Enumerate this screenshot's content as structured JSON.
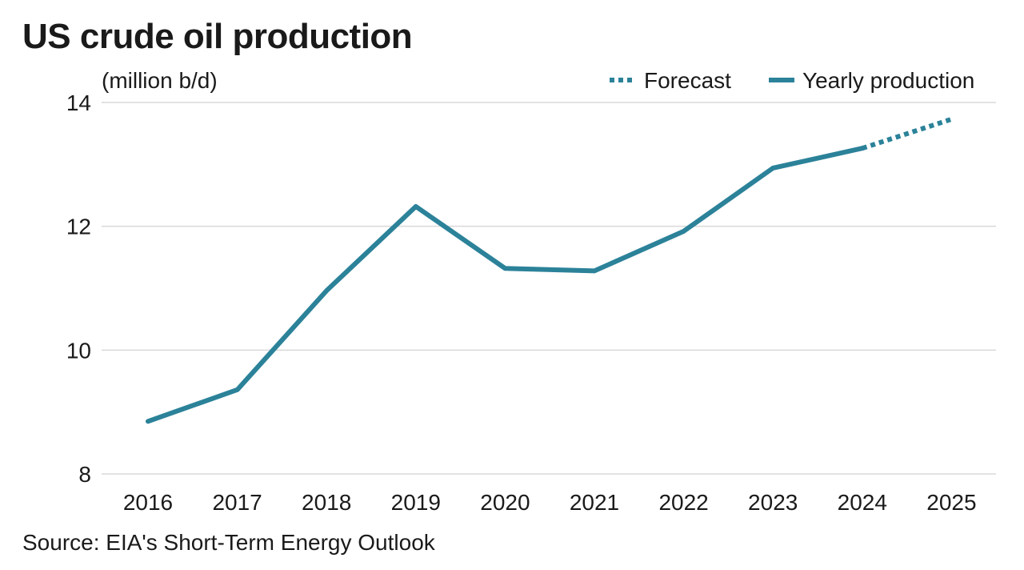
{
  "chart_data": {
    "type": "line",
    "title": "US crude oil production",
    "unit_label": "(million b/d)",
    "source": "Source: EIA's Short-Term Energy Outlook",
    "categories": [
      "2016",
      "2017",
      "2018",
      "2019",
      "2020",
      "2021",
      "2022",
      "2023",
      "2024",
      "2025"
    ],
    "series": [
      {
        "name": "Yearly production",
        "style": "solid",
        "x": [
          "2016",
          "2017",
          "2018",
          "2019",
          "2020",
          "2021",
          "2022",
          "2023",
          "2024"
        ],
        "values": [
          8.85,
          9.36,
          10.96,
          12.32,
          11.32,
          11.28,
          11.92,
          12.94,
          13.26
        ]
      },
      {
        "name": "Forecast",
        "style": "dotted",
        "x": [
          "2024",
          "2025"
        ],
        "values": [
          13.26,
          13.73
        ]
      }
    ],
    "ylim": [
      8,
      14
    ],
    "yticks": [
      8,
      10,
      12,
      14
    ],
    "grid": "horizontal",
    "legend_position": "top-right",
    "line_color": "#2b8299",
    "grid_color": "#d9d9d9"
  }
}
